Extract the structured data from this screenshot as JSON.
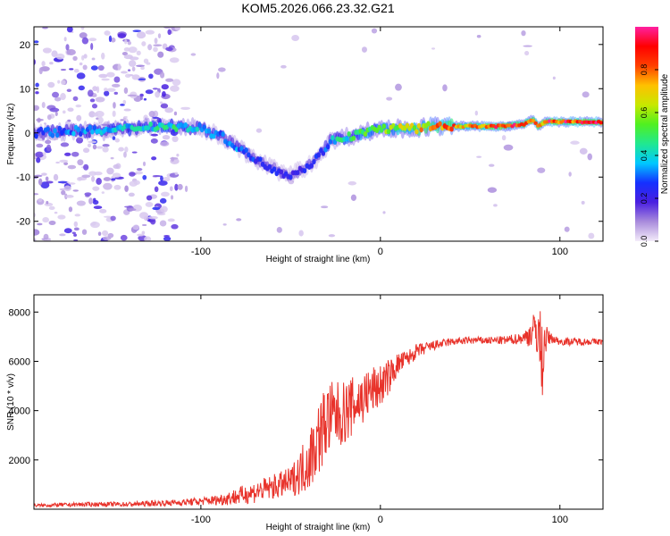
{
  "title": "KOM5.2026.066.23.32.G21",
  "chart_data": [
    {
      "type": "heatmap",
      "xlabel": "Height of straight line (km)",
      "ylabel": "Frequency (Hz)",
      "xlim": [
        -193,
        124
      ],
      "ylim": [
        -24.5,
        24
      ],
      "xticks": [
        -100,
        0,
        100
      ],
      "xtick_labels": [
        "-100",
        "0",
        "100"
      ],
      "yticks": [
        -20,
        -10,
        0,
        10,
        20
      ],
      "ytick_labels": [
        "-20",
        "-10",
        "0",
        "10",
        "20"
      ],
      "colorbar": {
        "label": "Normalized spectral amplitude",
        "range": [
          0,
          1
        ],
        "ticks": [
          0.0,
          0.2,
          0.4,
          0.6,
          0.8
        ],
        "tick_labels": [
          "0.0",
          "0.2",
          "0.4",
          "0.6",
          "0.8"
        ],
        "colors": [
          "#f4ecfa",
          "#a98bdc",
          "#4a1fe0",
          "#1530ff",
          "#00c8ff",
          "#20e890",
          "#50f020",
          "#c8e800",
          "#ffc000",
          "#ff4000",
          "#ff0000",
          "#ff20a0"
        ]
      },
      "ridge": {
        "x": [
          -193,
          -170,
          -150,
          -130,
          -115,
          -100,
          -90,
          -80,
          -70,
          -60,
          -52,
          -45,
          -38,
          -32,
          -28,
          -25,
          -20,
          -10,
          0,
          10,
          20,
          30,
          40,
          50,
          60,
          70,
          80,
          85,
          88,
          92,
          100,
          110,
          124
        ],
        "freq": [
          0,
          0.5,
          0.5,
          1.5,
          1.5,
          1,
          -0.5,
          -3,
          -6,
          -8,
          -9.5,
          -8.5,
          -7,
          -4,
          -2,
          -1.5,
          -1,
          0,
          1,
          1,
          1,
          1.5,
          1.5,
          1.5,
          1.5,
          1.5,
          2,
          3,
          1.5,
          2.5,
          2.5,
          2.5,
          2.5
        ],
        "amplitude": [
          0.3,
          0.35,
          0.4,
          0.45,
          0.5,
          0.4,
          0.35,
          0.35,
          0.3,
          0.3,
          0.25,
          0.25,
          0.25,
          0.3,
          0.4,
          0.45,
          0.5,
          0.55,
          0.6,
          0.7,
          0.75,
          0.85,
          0.85,
          0.85,
          0.9,
          0.95,
          0.95,
          0.9,
          0.9,
          0.95,
          1.0,
          1.0,
          1.0
        ]
      }
    },
    {
      "type": "line",
      "color": "#e8322a",
      "xlabel": "Height of straight line (km)",
      "ylabel": "SNR (10 * v/v)",
      "xlim": [
        -193,
        124
      ],
      "ylim": [
        0,
        8700
      ],
      "xticks": [
        -100,
        0,
        100
      ],
      "xtick_labels": [
        "-100",
        "0",
        "100"
      ],
      "yticks": [
        2000,
        4000,
        6000,
        8000
      ],
      "ytick_labels": [
        "2000",
        "4000",
        "6000",
        "8000"
      ],
      "series": [
        {
          "name": "SNR",
          "x": [
            -193,
            -180,
            -160,
            -140,
            -120,
            -110,
            -100,
            -90,
            -80,
            -70,
            -60,
            -50,
            -45,
            -40,
            -35,
            -30,
            -25,
            -20,
            -15,
            -10,
            -5,
            0,
            5,
            10,
            15,
            20,
            30,
            40,
            50,
            60,
            70,
            80,
            85,
            88,
            90,
            92,
            95,
            100,
            110,
            124
          ],
          "values": [
            150,
            170,
            200,
            200,
            250,
            280,
            320,
            380,
            520,
            700,
            900,
            1100,
            1500,
            2000,
            2800,
            3600,
            3800,
            3900,
            4200,
            4500,
            4800,
            5000,
            5400,
            5900,
            6100,
            6400,
            6650,
            6800,
            6850,
            6850,
            6850,
            6950,
            7200,
            7300,
            6000,
            6900,
            6950,
            6800,
            6800,
            6800
          ],
          "noise": [
            60,
            80,
            90,
            100,
            120,
            140,
            160,
            220,
            350,
            450,
            500,
            600,
            900,
            1300,
            1500,
            1600,
            1400,
            1300,
            1200,
            1100,
            1000,
            900,
            700,
            450,
            350,
            300,
            200,
            150,
            150,
            150,
            180,
            250,
            700,
            1200,
            1800,
            600,
            200,
            150,
            150,
            120
          ]
        }
      ]
    }
  ]
}
